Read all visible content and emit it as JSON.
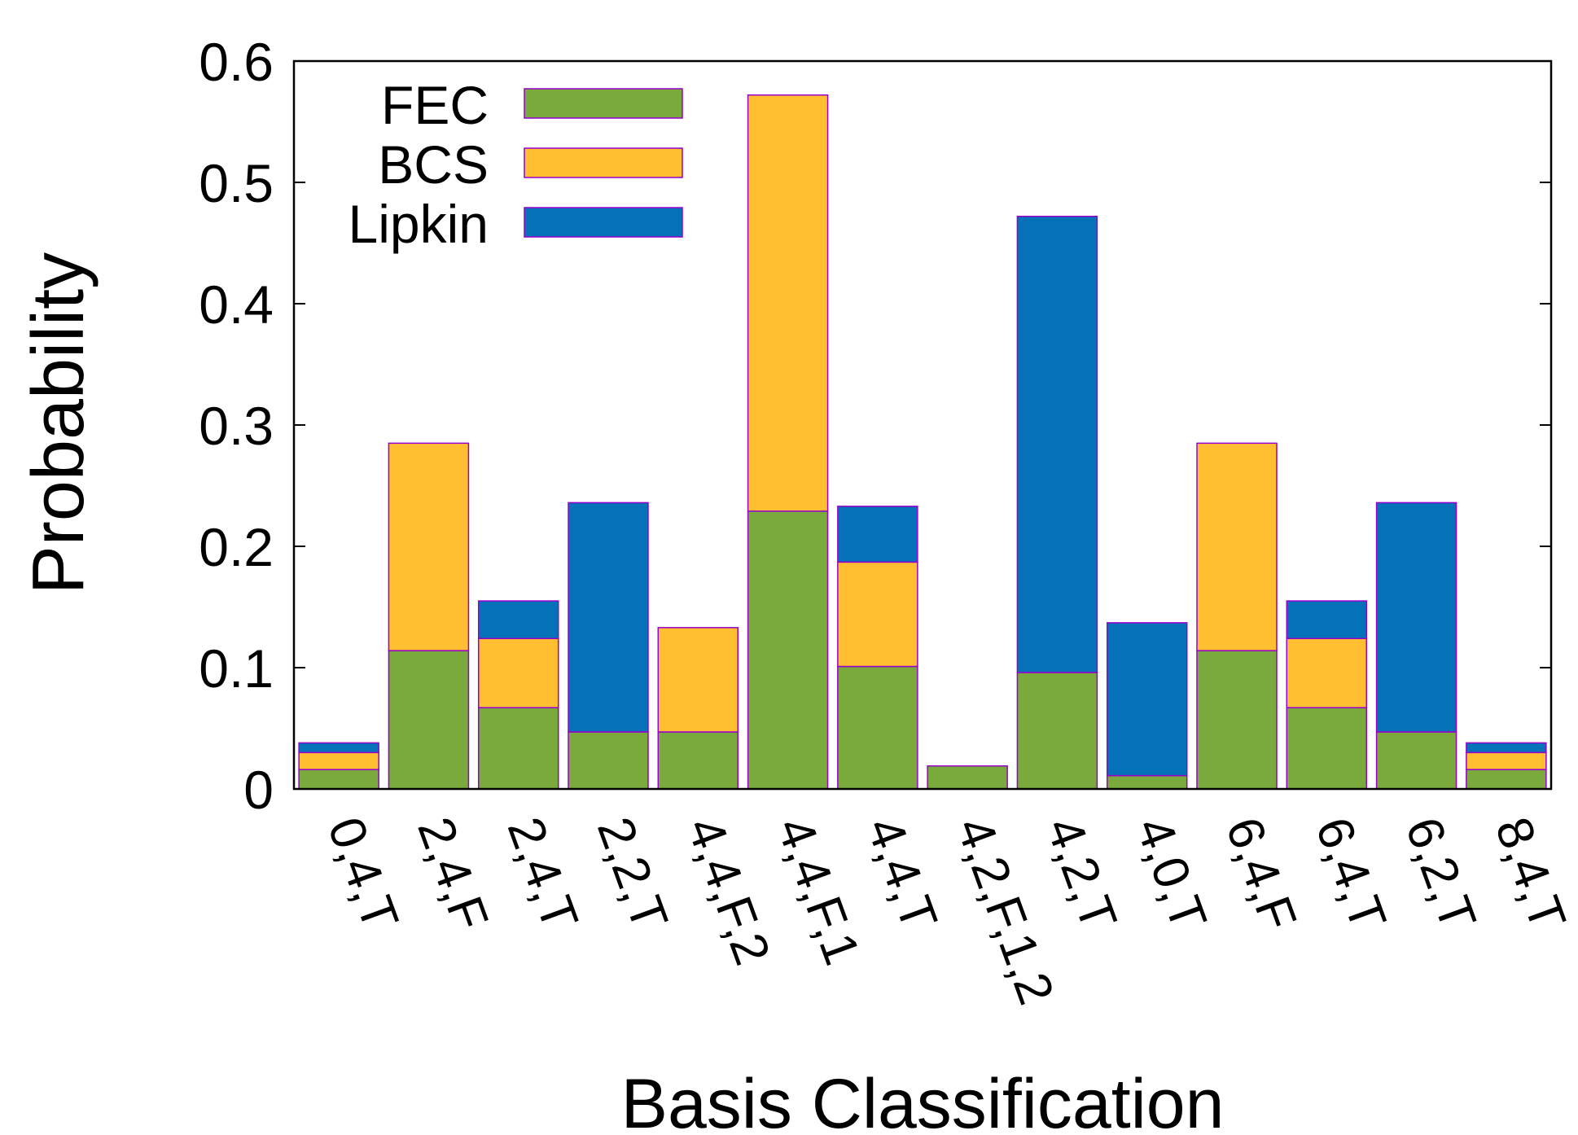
{
  "chart_data": {
    "type": "bar",
    "stacked": true,
    "title": "",
    "xlabel": "Basis Classification",
    "ylabel": "Probability",
    "ylim": [
      0,
      0.6
    ],
    "yticks": [
      "0",
      "0.1",
      "0.2",
      "0.3",
      "0.4",
      "0.5",
      "0.6"
    ],
    "ytick_values": [
      0,
      0.1,
      0.2,
      0.3,
      0.4,
      0.5,
      0.6
    ],
    "categories": [
      "0,4,T",
      "2,4,F",
      "2,4,T",
      "2,2,T",
      "4,4,F,2",
      "4,4,F,1",
      "4,4,T",
      "4,2,F,1,2",
      "4,2,T",
      "4,0,T",
      "6,4,F",
      "6,4,T",
      "6,2,T",
      "8,4,T"
    ],
    "series": [
      {
        "name": "FEC",
        "color": "#7aa93c",
        "values": [
          0.016,
          0.114,
          0.067,
          0.047,
          0.047,
          0.229,
          0.101,
          0.019,
          0.096,
          0.011,
          0.114,
          0.067,
          0.047,
          0.016
        ]
      },
      {
        "name": "BCS",
        "color": "#ffbf30",
        "values": [
          0.014,
          0.171,
          0.057,
          0.0,
          0.086,
          0.343,
          0.086,
          0.0,
          0.0,
          0.0,
          0.171,
          0.057,
          0.0,
          0.014
        ]
      },
      {
        "name": "Lipkin",
        "color": "#0571b8",
        "values": [
          0.008,
          0.0,
          0.031,
          0.189,
          0.0,
          0.0,
          0.046,
          0.0,
          0.376,
          0.126,
          0.0,
          0.031,
          0.189,
          0.008
        ]
      }
    ],
    "legend_position": "top-left",
    "grid": false,
    "bar_edge_color": "#9900cc"
  }
}
